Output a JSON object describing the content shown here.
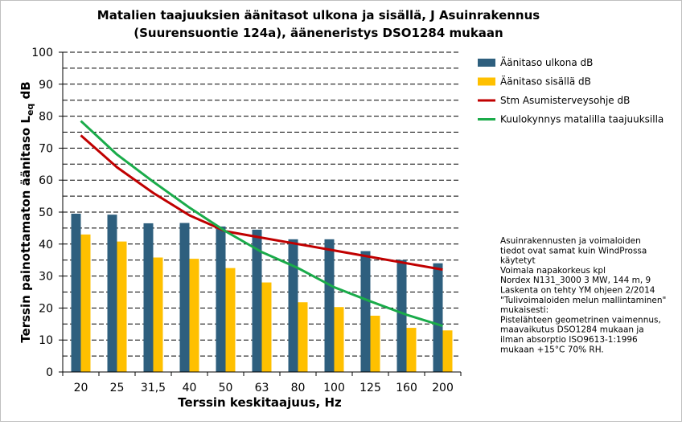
{
  "chart_data": {
    "type": "bar",
    "title_lines": [
      "Matalien taajuuksien äänitasot ulkona ja sisällä, J Asuinrakennus",
      "(Suurensuontie 124a), ääneneristys DSO1284 mukaan"
    ],
    "xlabel": "Terssin keskitaajuus, Hz",
    "ylabel_main": "Terssin painottamaton äänitaso L",
    "ylabel_sub": "eq",
    "ylabel_unit": " dB",
    "categories": [
      "20",
      "25",
      "31,5",
      "40",
      "50",
      "63",
      "80",
      "100",
      "125",
      "160",
      "200"
    ],
    "ylim": [
      0,
      100
    ],
    "yticks": [
      "0",
      "10",
      "20",
      "30",
      "40",
      "50",
      "60",
      "70",
      "80",
      "90",
      "100"
    ],
    "grid": "dashed horizontal lines every 5 dB",
    "series": [
      {
        "name": "Äänitaso ulkona dB",
        "kind": "bar",
        "color": "#2e5f7e",
        "values": [
          49.5,
          49.2,
          46.5,
          46.6,
          45.5,
          44.5,
          41.5,
          41.5,
          37.8,
          35.0,
          34.0
        ]
      },
      {
        "name": "Äänitaso sisällä dB",
        "kind": "bar",
        "color": "#ffc000",
        "values": [
          43.0,
          40.8,
          35.8,
          35.4,
          32.5,
          28.0,
          21.8,
          20.3,
          17.6,
          13.8,
          13.0
        ]
      },
      {
        "name": "Stm Asumisterveysohje dB",
        "kind": "line",
        "color": "#c00000",
        "values": [
          74,
          64,
          56,
          49,
          44,
          42,
          40,
          38,
          36,
          34,
          32
        ]
      },
      {
        "name": "Kuulokynnys matalilla taajuuksilla",
        "kind": "line",
        "color": "#1aab4a",
        "values": [
          78.5,
          68.0,
          59.5,
          51.4,
          44.0,
          37.5,
          32.5,
          26.5,
          22.1,
          17.9,
          14.4
        ]
      }
    ],
    "legend": "top-right",
    "note_lines": [
      "Asuinrakennusten ja voimaloiden",
      "tiedot ovat samat kuin WindProssa",
      "käytetyt",
      "Voimala napakorkeus  kpl",
      "Nordex N131_3000   3 MW, 144 m, 9",
      "Laskenta on tehty YM ohjeen 2/2014",
      "\"Tulivoimaloiden melun mallintaminen\"",
      "mukaisesti:",
      "Pistelähteen geometrinen vaimennus,",
      "maavaikutus DSO1284 mukaan ja",
      "ilman absorptio ISO9613-1:1996",
      "mukaan +15°C 70% RH."
    ]
  }
}
